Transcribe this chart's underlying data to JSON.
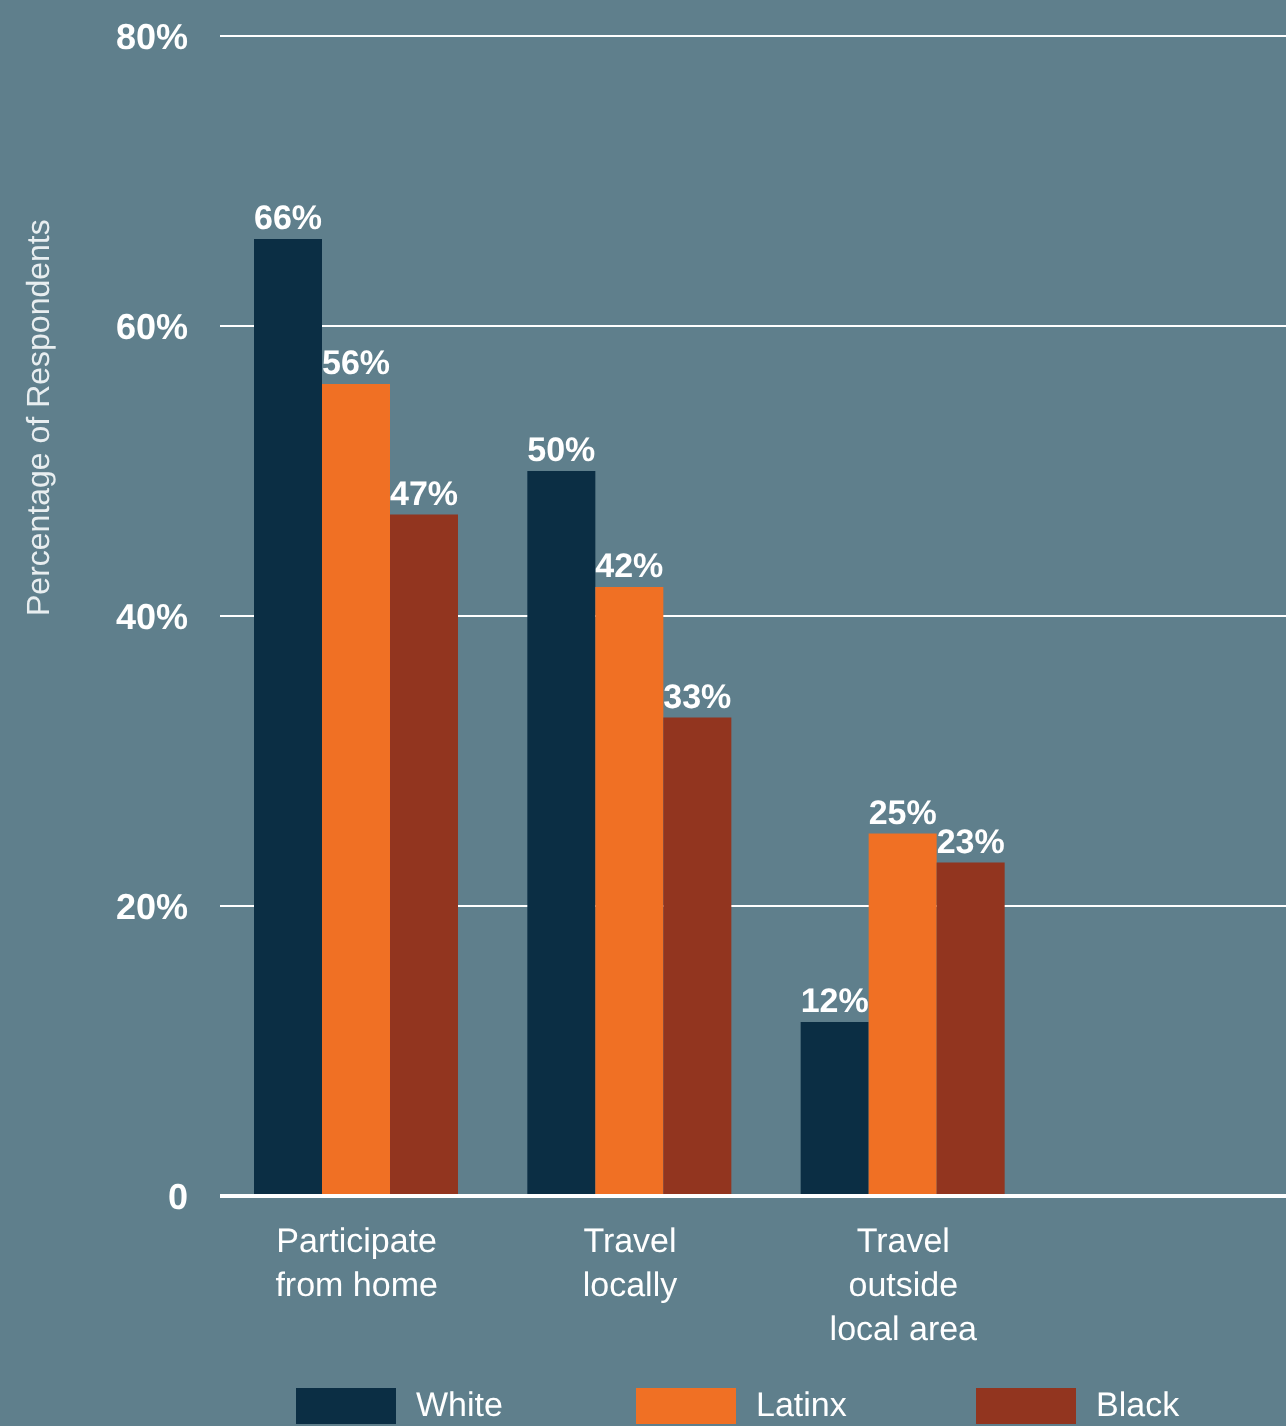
{
  "chart_data": {
    "type": "bar",
    "ylabel": "Percentage of Respondents",
    "categories": [
      "Participate from home",
      "Travel locally",
      "Travel outside local area"
    ],
    "series": [
      {
        "name": "White",
        "color": "#0b2e44",
        "values": [
          66,
          50,
          12
        ],
        "value_labels": [
          "66%",
          "50%",
          "12%"
        ]
      },
      {
        "name": "Latinx",
        "color": "#f07024",
        "values": [
          56,
          42,
          25
        ],
        "value_labels": [
          "56%",
          "42%",
          "25%"
        ]
      },
      {
        "name": "Black",
        "color": "#92351f",
        "values": [
          47,
          33,
          23
        ],
        "value_labels": [
          "47%",
          "33%",
          "23%"
        ]
      }
    ],
    "ylim": [
      0,
      80
    ],
    "yticks": [
      0,
      {
        "value": 20,
        "label": "20%"
      },
      {
        "value": 40,
        "label": "40%"
      },
      {
        "value": 60,
        "label": "60%"
      },
      {
        "value": 80,
        "label": "80%"
      }
    ],
    "grid": "y",
    "legend": "bottom"
  }
}
